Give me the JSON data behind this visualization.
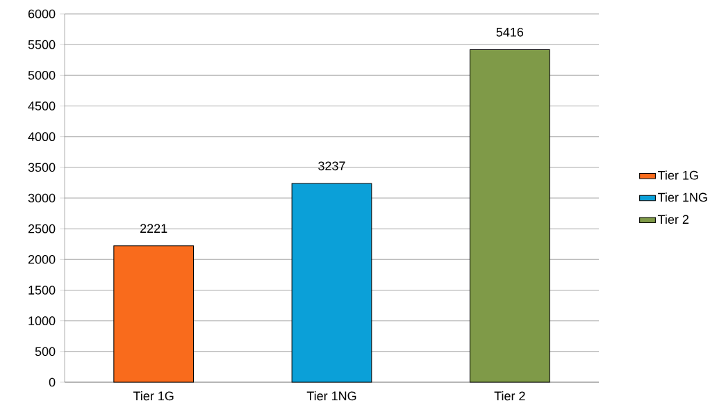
{
  "chart_data": {
    "type": "bar",
    "categories": [
      "Tier 1G",
      "Tier 1NG",
      "Tier 2"
    ],
    "series": [
      {
        "name": "Tier 1G",
        "color": "#f96b1c",
        "values": [
          2221,
          null,
          null
        ]
      },
      {
        "name": "Tier 1NG",
        "color": "#0ba0d8",
        "values": [
          null,
          3237,
          null
        ]
      },
      {
        "name": "Tier 2",
        "color": "#7f9a48",
        "values": [
          null,
          null,
          5416
        ]
      }
    ],
    "ylim": [
      0,
      6000
    ],
    "yticks": [
      0,
      500,
      1000,
      1500,
      2000,
      2500,
      3000,
      3500,
      4000,
      4500,
      5000,
      5500,
      6000
    ],
    "grid": "y",
    "legend": "right",
    "data_labels": true
  }
}
